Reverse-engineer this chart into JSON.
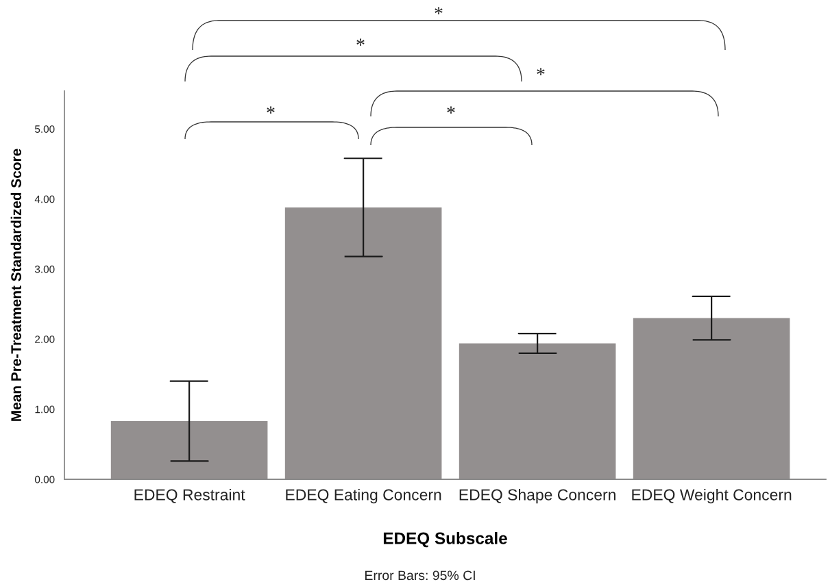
{
  "chart_data": {
    "type": "bar",
    "xlabel": "EDEQ Subscale",
    "ylabel": "Mean Pre-Treatment Standardized Score",
    "categories": [
      "EDEQ Restraint",
      "EDEQ Eating Concern",
      "EDEQ Shape Concern",
      "EDEQ Weight Concern"
    ],
    "values": [
      0.83,
      3.88,
      1.94,
      2.3
    ],
    "errors": [
      0.57,
      0.7,
      0.14,
      0.31
    ],
    "color": "#938f8f",
    "ylim": [
      0,
      5.54
    ],
    "yticks": [
      {
        "value": 0,
        "label": "0.00"
      },
      {
        "value": 1,
        "label": "1.00"
      },
      {
        "value": 2,
        "label": "2.00"
      },
      {
        "value": 3,
        "label": "3.00"
      },
      {
        "value": 4,
        "label": "4.00"
      },
      {
        "value": 5,
        "label": "5.00"
      }
    ],
    "grid": false,
    "annotations": [
      "*",
      "*",
      "*",
      "*",
      "*",
      "Error Bars: 95% CI"
    ]
  }
}
